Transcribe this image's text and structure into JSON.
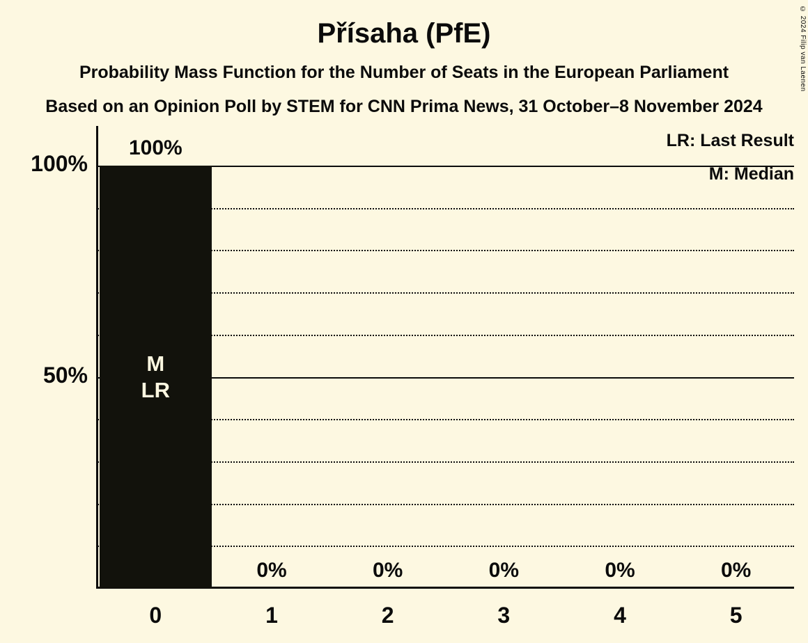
{
  "title": "Přísaha (PfE)",
  "subtitle": "Probability Mass Function for the Number of Seats in the European Parliament",
  "source_line": "Based on an Opinion Poll by STEM for CNN Prima News, 31 October–8 November 2024",
  "copyright": "© 2024 Filip van Laenen",
  "legend": {
    "last_result": "LR: Last Result",
    "median": "M: Median"
  },
  "colors": {
    "background": "#FDF8E1",
    "bar": "#12120C",
    "text": "#0B0B0B"
  },
  "chart_data": {
    "type": "bar",
    "title": "Přísaha (PfE)",
    "categories": [
      "0",
      "1",
      "2",
      "3",
      "4",
      "5"
    ],
    "values": [
      100,
      0,
      0,
      0,
      0,
      0
    ],
    "value_labels": [
      "100%",
      "0%",
      "0%",
      "0%",
      "0%",
      "0%"
    ],
    "bar_annotations": [
      [
        "M",
        "LR"
      ],
      [],
      [],
      [],
      [],
      []
    ],
    "y_ticks": [
      {
        "label": "100%",
        "value": 100
      },
      {
        "label": "50%",
        "value": 50
      }
    ],
    "ylim": [
      0,
      100
    ],
    "solid_gridlines": [
      100,
      50
    ],
    "dotted_gridlines": [
      90,
      80,
      70,
      60,
      40,
      30,
      20,
      10
    ],
    "grid": true,
    "legend_position": "top-right"
  }
}
